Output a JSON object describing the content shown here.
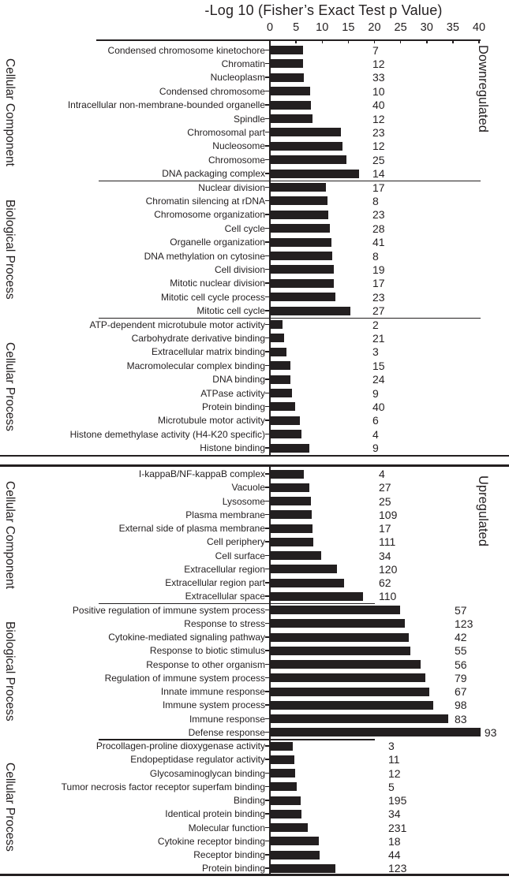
{
  "chart_data": {
    "type": "bar",
    "orientation": "horizontal",
    "axis_title": "-Log 10 (Fisher’s Exact Test p Value)",
    "xlim": [
      0,
      40
    ],
    "xticks": [
      0,
      5,
      10,
      15,
      20,
      25,
      30,
      35,
      40
    ],
    "bar_color": "#231f20",
    "panels": [
      {
        "side_label": "Downregulated",
        "groups": [
          {
            "label": "Cellular Component",
            "rows": [
              {
                "label": "Condensed chromosome kinetochore",
                "value": 6.3,
                "count": 7
              },
              {
                "label": "Chromatin",
                "value": 6.2,
                "count": 12
              },
              {
                "label": "Nucleoplasm",
                "value": 6.4,
                "count": 33
              },
              {
                "label": "Condensed chromosome",
                "value": 7.6,
                "count": 10
              },
              {
                "label": "Intracellular non-membrane-bounded organelle",
                "value": 7.8,
                "count": 40
              },
              {
                "label": "Spindle",
                "value": 8.0,
                "count": 12
              },
              {
                "label": "Chromosomal part",
                "value": 13.5,
                "count": 23
              },
              {
                "label": "Nucleosome",
                "value": 13.8,
                "count": 12
              },
              {
                "label": "Chromosome",
                "value": 14.6,
                "count": 25
              },
              {
                "label": "DNA packaging complex",
                "value": 17.0,
                "count": 14
              }
            ]
          },
          {
            "label": "Biological Process",
            "rows": [
              {
                "label": "Nuclear division",
                "value": 10.7,
                "count": 17
              },
              {
                "label": "Chromatin silencing at rDNA",
                "value": 10.9,
                "count": 8
              },
              {
                "label": "Chromosome organization",
                "value": 11.1,
                "count": 23
              },
              {
                "label": "Cell cycle",
                "value": 11.4,
                "count": 28
              },
              {
                "label": "Organelle organization",
                "value": 11.7,
                "count": 41
              },
              {
                "label": "DNA methylation on cytosine",
                "value": 11.9,
                "count": 8
              },
              {
                "label": "Cell division",
                "value": 12.1,
                "count": 19
              },
              {
                "label": "Mitotic nuclear division",
                "value": 12.2,
                "count": 17
              },
              {
                "label": "Mitotic cell cycle process",
                "value": 12.5,
                "count": 23
              },
              {
                "label": "Mitotic cell cycle",
                "value": 15.3,
                "count": 27
              }
            ]
          },
          {
            "label": "Cellular Process",
            "rows": [
              {
                "label": "ATP-dependent microtubule motor activity",
                "value": 2.4,
                "count": 2
              },
              {
                "label": "Carbohydrate derivative binding",
                "value": 2.7,
                "count": 21
              },
              {
                "label": "Extracellular matrix binding",
                "value": 3.1,
                "count": 3
              },
              {
                "label": "Macromolecular complex binding",
                "value": 3.8,
                "count": 15
              },
              {
                "label": "DNA binding",
                "value": 3.9,
                "count": 24
              },
              {
                "label": "ATPase activity",
                "value": 4.2,
                "count": 9
              },
              {
                "label": "Protein binding",
                "value": 4.8,
                "count": 40
              },
              {
                "label": "Microtubule motor activity",
                "value": 5.7,
                "count": 6
              },
              {
                "label": "Histone demethylase activity (H4-K20 specific)",
                "value": 5.9,
                "count": 4
              },
              {
                "label": "Histone binding",
                "value": 7.4,
                "count": 9
              }
            ]
          }
        ]
      },
      {
        "side_label": "Upregulated",
        "groups": [
          {
            "label": "Cellular Component",
            "rows": [
              {
                "label": "I-kappaB/NF-kappaB complex",
                "value": 6.4,
                "count": 4
              },
              {
                "label": "Vacuole",
                "value": 7.5,
                "count": 27
              },
              {
                "label": "Lysosome",
                "value": 7.7,
                "count": 25
              },
              {
                "label": "Plasma membrane",
                "value": 7.9,
                "count": 109
              },
              {
                "label": "External side of plasma membrane",
                "value": 8.0,
                "count": 17
              },
              {
                "label": "Cell periphery",
                "value": 8.3,
                "count": 111
              },
              {
                "label": "Cell surface",
                "value": 9.7,
                "count": 34
              },
              {
                "label": "Extracellular region",
                "value": 12.8,
                "count": 120
              },
              {
                "label": "Extracellular region part",
                "value": 14.1,
                "count": 62
              },
              {
                "label": "Extracellular space",
                "value": 17.8,
                "count": 110
              }
            ]
          },
          {
            "label": "Biological Process",
            "rows": [
              {
                "label": "Positive regulation of immune system process",
                "value": 24.8,
                "count": 57
              },
              {
                "label": "Response to stress",
                "value": 25.7,
                "count": 123
              },
              {
                "label": "Cytokine-mediated signaling pathway",
                "value": 26.5,
                "count": 42
              },
              {
                "label": "Response to biotic stimulus",
                "value": 26.8,
                "count": 55
              },
              {
                "label": "Response to other organism",
                "value": 28.7,
                "count": 56
              },
              {
                "label": "Regulation of immune system process",
                "value": 29.7,
                "count": 79
              },
              {
                "label": "Innate immune response",
                "value": 30.4,
                "count": 67
              },
              {
                "label": "Immune system process",
                "value": 31.2,
                "count": 98
              },
              {
                "label": "Immune response",
                "value": 34.1,
                "count": 83
              },
              {
                "label": "Defense response",
                "value": 40.2,
                "count": 93
              }
            ]
          },
          {
            "label": "Cellular Process",
            "rows": [
              {
                "label": "Procollagen-proline dioxygenase activity",
                "value": 4.3,
                "count": 3
              },
              {
                "label": "Endopeptidase regulator activity",
                "value": 4.6,
                "count": 11
              },
              {
                "label": "Glycosaminoglycan binding",
                "value": 4.7,
                "count": 12
              },
              {
                "label": "Tumor necrosis factor receptor superfam binding",
                "value": 5.1,
                "count": 5
              },
              {
                "label": "Binding",
                "value": 5.8,
                "count": 195
              },
              {
                "label": "Identical protein binding",
                "value": 6.0,
                "count": 34
              },
              {
                "label": "Molecular function",
                "value": 7.1,
                "count": 231
              },
              {
                "label": "Cytokine receptor binding",
                "value": 9.3,
                "count": 18
              },
              {
                "label": "Receptor binding",
                "value": 9.4,
                "count": 44
              },
              {
                "label": "Protein binding",
                "value": 12.5,
                "count": 123
              }
            ]
          }
        ]
      }
    ]
  }
}
